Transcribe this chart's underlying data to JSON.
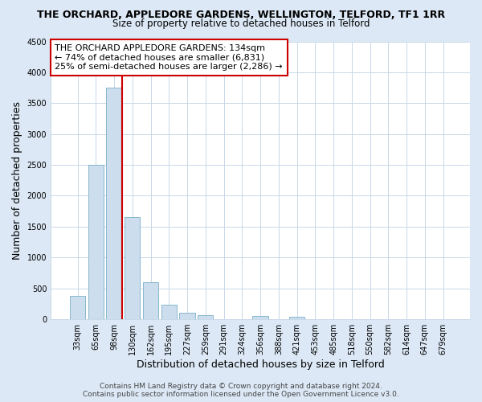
{
  "title_line1": "THE ORCHARD, APPLEDORE GARDENS, WELLINGTON, TELFORD, TF1 1RR",
  "title_line2": "Size of property relative to detached houses in Telford",
  "xlabel": "Distribution of detached houses by size in Telford",
  "ylabel": "Number of detached properties",
  "bar_labels": [
    "33sqm",
    "65sqm",
    "98sqm",
    "130sqm",
    "162sqm",
    "195sqm",
    "227sqm",
    "259sqm",
    "291sqm",
    "324sqm",
    "356sqm",
    "388sqm",
    "421sqm",
    "453sqm",
    "485sqm",
    "518sqm",
    "550sqm",
    "582sqm",
    "614sqm",
    "647sqm",
    "679sqm"
  ],
  "bar_values": [
    380,
    2500,
    3750,
    1650,
    600,
    240,
    100,
    60,
    0,
    0,
    50,
    0,
    40,
    0,
    0,
    0,
    0,
    0,
    0,
    0,
    0
  ],
  "bar_color": "#ccdded",
  "bar_edge_color": "#7aafc8",
  "red_line_after_index": 2,
  "highlight_edge_color": "#cc0000",
  "ylim": [
    0,
    4500
  ],
  "yticks": [
    0,
    500,
    1000,
    1500,
    2000,
    2500,
    3000,
    3500,
    4000,
    4500
  ],
  "annotation_title": "THE ORCHARD APPLEDORE GARDENS: 134sqm",
  "annotation_line2": "← 74% of detached houses are smaller (6,831)",
  "annotation_line3": "25% of semi-detached houses are larger (2,286) →",
  "annotation_box_color": "#ffffff",
  "annotation_box_edge": "#cc0000",
  "footer_line1": "Contains HM Land Registry data © Crown copyright and database right 2024.",
  "footer_line2": "Contains public sector information licensed under the Open Government Licence v3.0.",
  "figure_bg_color": "#dce8f5",
  "plot_bg_color": "#ffffff",
  "grid_color": "#c8d8e8",
  "title_fontsize": 9,
  "subtitle_fontsize": 8.5,
  "axis_label_fontsize": 9,
  "tick_fontsize": 7,
  "annotation_fontsize": 8,
  "footer_fontsize": 6.5
}
